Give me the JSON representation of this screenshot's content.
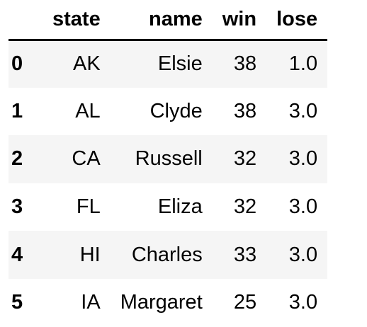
{
  "table": {
    "index_header": "",
    "columns": [
      "state",
      "name",
      "win",
      "lose"
    ],
    "rows": [
      {
        "index": "0",
        "state": "AK",
        "name": "Elsie",
        "win": "38",
        "lose": "1.0"
      },
      {
        "index": "1",
        "state": "AL",
        "name": "Clyde",
        "win": "38",
        "lose": "3.0"
      },
      {
        "index": "2",
        "state": "CA",
        "name": "Russell",
        "win": "32",
        "lose": "3.0"
      },
      {
        "index": "3",
        "state": "FL",
        "name": "Eliza",
        "win": "32",
        "lose": "3.0"
      },
      {
        "index": "4",
        "state": "HI",
        "name": "Charles",
        "win": "33",
        "lose": "3.0"
      },
      {
        "index": "5",
        "state": "IA",
        "name": "Margaret",
        "win": "25",
        "lose": "3.0"
      }
    ]
  }
}
